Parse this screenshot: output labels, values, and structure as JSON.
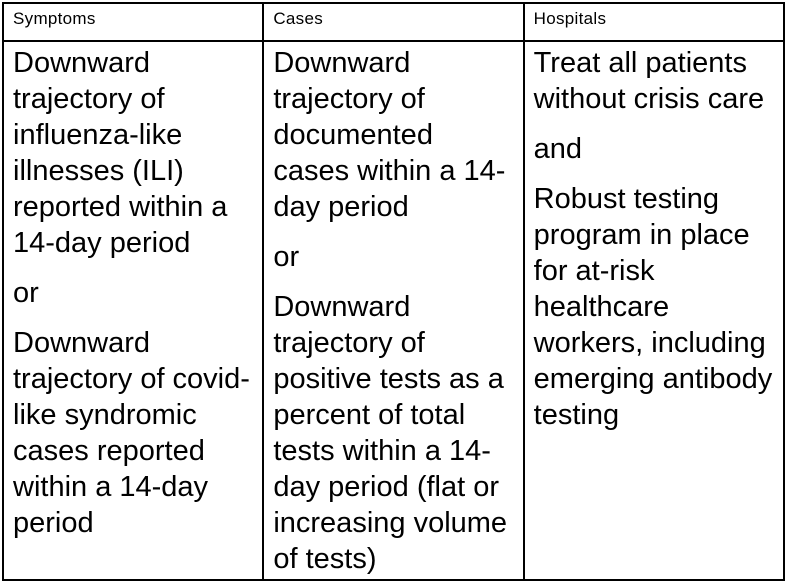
{
  "table": {
    "columns": [
      {
        "header": "Symptoms",
        "paragraphs": [
          "Downward trajectory of influenza-like illnesses (ILI) reported within a 14-day period",
          "or",
          "Downward trajectory of covid-like syndromic cases reported within a 14-day period"
        ]
      },
      {
        "header": "Cases",
        "paragraphs": [
          "Downward trajectory of documented cases within a 14-day period",
          "or",
          "Downward trajectory of positive tests as a percent of total tests within a 14-day period (flat or increasing volume of tests)"
        ]
      },
      {
        "header": "Hospitals",
        "paragraphs": [
          "Treat all patients without crisis care",
          "and",
          "Robust testing program in place for at-risk healthcare workers, including emerging antibody testing"
        ]
      }
    ],
    "colors": {
      "border": "#000000",
      "background": "#ffffff",
      "text": "#000000"
    }
  }
}
